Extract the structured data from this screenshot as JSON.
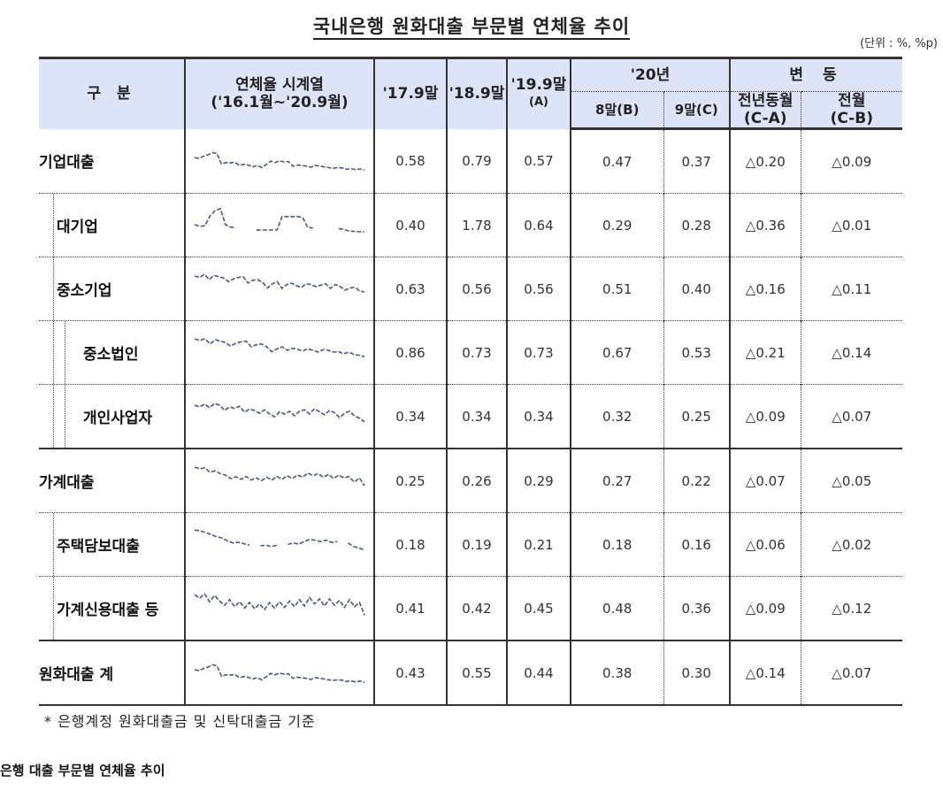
{
  "title": "국내은행 원화대출 부문별 연체율 추이",
  "unit": "(단위 : %, %p)",
  "header": {
    "category": "구 분",
    "series_line1": "연체율 시계열",
    "series_line2": "('16.1월~'20.9월)",
    "c1": "'17.9말",
    "c2": "'18.9말",
    "c3_line1": "'19.9말",
    "c3_line2": "(A)",
    "y20": "'20년",
    "c4": "8말(B)",
    "c5": "9말(C)",
    "change": "변 동",
    "c6_line1": "전년동월",
    "c6_line2": "(C-A)",
    "c7_line1": "전월",
    "c7_line2": "(C-B)"
  },
  "rows": [
    {
      "label": "기업대출",
      "v1": "0.58",
      "v2": "0.79",
      "v3": "0.57",
      "v4": "0.47",
      "v5": "0.37",
      "d1": "△0.20",
      "d2": "△0.09"
    },
    {
      "label": "대기업",
      "v1": "0.40",
      "v2": "1.78",
      "v3": "0.64",
      "v4": "0.29",
      "v5": "0.28",
      "d1": "△0.36",
      "d2": "△0.01"
    },
    {
      "label": "중소기업",
      "v1": "0.63",
      "v2": "0.56",
      "v3": "0.56",
      "v4": "0.51",
      "v5": "0.40",
      "d1": "△0.16",
      "d2": "△0.11"
    },
    {
      "label": "중소법인",
      "v1": "0.86",
      "v2": "0.73",
      "v3": "0.73",
      "v4": "0.67",
      "v5": "0.53",
      "d1": "△0.21",
      "d2": "△0.14"
    },
    {
      "label": "개인사업자",
      "v1": "0.34",
      "v2": "0.34",
      "v3": "0.34",
      "v4": "0.32",
      "v5": "0.25",
      "d1": "△0.09",
      "d2": "△0.07"
    },
    {
      "label": "가계대출",
      "v1": "0.25",
      "v2": "0.26",
      "v3": "0.29",
      "v4": "0.27",
      "v5": "0.22",
      "d1": "△0.07",
      "d2": "△0.05"
    },
    {
      "label": "주택담보대출",
      "v1": "0.18",
      "v2": "0.19",
      "v3": "0.21",
      "v4": "0.18",
      "v5": "0.16",
      "d1": "△0.06",
      "d2": "△0.02"
    },
    {
      "label": "가계신용대출 등",
      "v1": "0.41",
      "v2": "0.42",
      "v3": "0.45",
      "v4": "0.48",
      "v5": "0.36",
      "d1": "△0.09",
      "d2": "△0.12"
    },
    {
      "label": "원화대출 계",
      "v1": "0.43",
      "v2": "0.55",
      "v3": "0.44",
      "v4": "0.38",
      "v5": "0.30",
      "d1": "△0.14",
      "d2": "△0.07"
    }
  ],
  "sparklines": {
    "color": "#4a5a7a",
    "series": [
      [
        0.62,
        0.6,
        0.66,
        0.7,
        0.76,
        0.74,
        0.44,
        0.48,
        0.47,
        0.49,
        0.4,
        0.43,
        0.41,
        0.36,
        0.4,
        0.34,
        0.42,
        0.52,
        0.48,
        0.53,
        0.5,
        0.51,
        0.38,
        0.41,
        0.4,
        0.38,
        0.35,
        0.4,
        0.38,
        0.36,
        0.34,
        0.32,
        0.34,
        0.33,
        0.29,
        0.31,
        0.28,
        0.3,
        0.27
      ],
      [
        0.55,
        0.5,
        0.52,
        0.8,
        0.95,
        1.0,
        0.55,
        0.48,
        0.47,
        null,
        0.45,
        null,
        0.4,
        0.4,
        0.4,
        0.4,
        0.4,
        0.78,
        0.78,
        0.78,
        0.78,
        0.75,
        0.47,
        0.46,
        null,
        0.46,
        null,
        null,
        0.44,
        0.42,
        0.37,
        0.36,
        0.35,
        0.35
      ],
      [
        0.9,
        0.86,
        0.95,
        0.8,
        0.92,
        0.88,
        0.84,
        0.74,
        0.82,
        0.86,
        0.88,
        0.7,
        0.78,
        0.8,
        0.72,
        0.56,
        0.68,
        0.74,
        0.55,
        0.66,
        0.7,
        0.62,
        0.58,
        0.68,
        0.66,
        0.6,
        0.64,
        0.68,
        0.55,
        0.66,
        0.6,
        0.5,
        0.56,
        0.58,
        0.48,
        0.45
      ],
      [
        0.92,
        0.88,
        0.93,
        0.78,
        0.9,
        0.86,
        0.82,
        0.72,
        0.8,
        0.84,
        0.86,
        0.7,
        0.76,
        0.78,
        0.7,
        0.56,
        0.64,
        0.7,
        0.6,
        0.66,
        0.63,
        0.58,
        0.64,
        0.6,
        0.55,
        0.62,
        0.6,
        0.55,
        0.56,
        0.5,
        0.55,
        0.48,
        0.46,
        0.42
      ],
      [
        0.85,
        0.8,
        0.88,
        0.78,
        0.9,
        0.85,
        0.7,
        0.8,
        0.76,
        0.82,
        0.65,
        0.74,
        0.7,
        0.62,
        0.72,
        0.6,
        0.52,
        0.66,
        0.6,
        0.68,
        0.55,
        0.68,
        0.72,
        0.6,
        0.75,
        0.66,
        0.58,
        0.7,
        0.64,
        0.5,
        0.62,
        0.68,
        0.55,
        0.48,
        0.38
      ],
      [
        0.92,
        0.88,
        0.9,
        0.78,
        0.82,
        0.74,
        0.7,
        0.6,
        0.65,
        0.58,
        0.66,
        0.56,
        0.62,
        0.54,
        0.64,
        0.56,
        0.66,
        0.58,
        0.68,
        0.6,
        0.7,
        0.64,
        0.76,
        0.68,
        0.74,
        0.64,
        0.72,
        0.6,
        0.7,
        0.62,
        0.66,
        0.5,
        0.62,
        0.4
      ],
      [
        0.95,
        0.92,
        0.88,
        0.82,
        0.76,
        0.72,
        0.64,
        0.58,
        0.6,
        0.56,
        0.52,
        null,
        0.5,
        0.52,
        0.48,
        0.52,
        null,
        0.54,
        0.58,
        0.55,
        0.62,
        0.68,
        0.66,
        0.62,
        0.66,
        0.6,
        0.62,
        null,
        0.58,
        0.48,
        0.44,
        0.38
      ],
      [
        0.92,
        0.82,
        0.94,
        0.72,
        0.9,
        0.74,
        0.62,
        0.78,
        0.58,
        0.72,
        0.54,
        0.7,
        0.52,
        0.66,
        0.5,
        0.7,
        0.54,
        0.72,
        0.56,
        0.74,
        0.58,
        0.78,
        0.6,
        0.84,
        0.66,
        0.8,
        0.6,
        0.8,
        0.62,
        0.76,
        0.56,
        0.78,
        0.58,
        0.7,
        0.34
      ],
      [
        0.62,
        0.6,
        0.66,
        0.7,
        0.76,
        0.74,
        0.44,
        0.48,
        0.47,
        0.49,
        0.4,
        0.43,
        0.41,
        0.36,
        0.4,
        0.34,
        0.42,
        0.52,
        0.48,
        0.53,
        0.5,
        0.51,
        0.38,
        0.41,
        0.4,
        0.38,
        0.35,
        0.4,
        0.38,
        0.36,
        0.34,
        0.32,
        0.34,
        0.33,
        0.29,
        0.31,
        0.28,
        0.3,
        0.27
      ]
    ]
  },
  "note": "* 은행계정 원화대출금 및 신탁대출금 기준",
  "caption": "은행 대출 부문별 연체율 추이"
}
